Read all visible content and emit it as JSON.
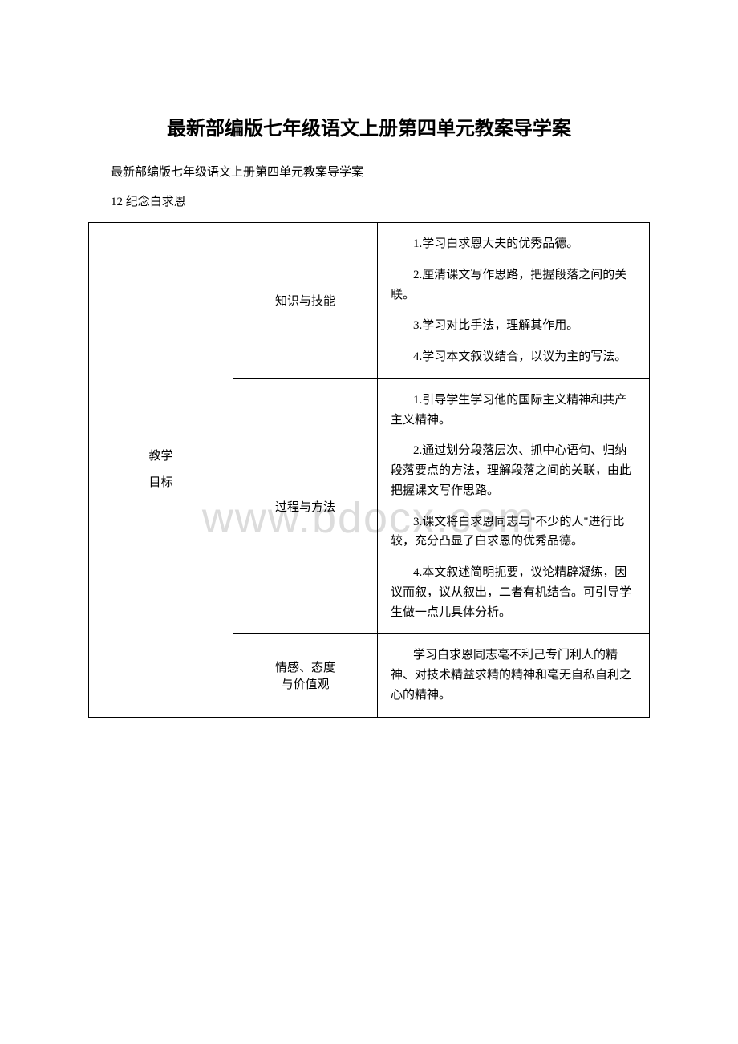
{
  "watermark": "www.bdocx.com",
  "mainTitle": "最新部编版七年级语文上册第四单元教案导学案",
  "subtitle": "最新部编版七年级语文上册第四单元教案导学案",
  "lessonTitle": "12 纪念白求恩",
  "table": {
    "rowLabel": {
      "line1": "教学",
      "line2": "目标"
    },
    "sections": [
      {
        "category": "知识与技能",
        "items": [
          "1.学习白求恩大夫的优秀品德。",
          "2.厘清课文写作思路，把握段落之间的关联。",
          "3.学习对比手法，理解其作用。",
          "4.学习本文叙议结合，以议为主的写法。"
        ]
      },
      {
        "category": "过程与方法",
        "items": [
          "1.引导学生学习他的国际主义精神和共产主义精神。",
          "2.通过划分段落层次、抓中心语句、归纳段落要点的方法，理解段落之间的关联，由此把握课文写作思路。",
          "3.课文将白求恩同志与\"不少的人\"进行比较，充分凸显了白求恩的优秀品德。",
          "4.本文叙述简明扼要，议论精辟凝练，因议而叙，议从叙出，二者有机结合。可引导学生做一点儿具体分析。"
        ]
      },
      {
        "category_line1": "情感、态度",
        "category_line2": "与价值观",
        "items": [
          "学习白求恩同志毫不利己专门利人的精神、对技术精益求精的精神和毫无自私自利之心的精神。"
        ]
      }
    ]
  },
  "styles": {
    "pageWidth": 920,
    "pageHeight": 1302,
    "backgroundColor": "#ffffff",
    "textColor": "#000000",
    "borderColor": "#000000",
    "watermarkColor": "#dcdcdc",
    "titleFontSize": 24,
    "bodyFontSize": 15,
    "watermarkFontSize": 54
  }
}
